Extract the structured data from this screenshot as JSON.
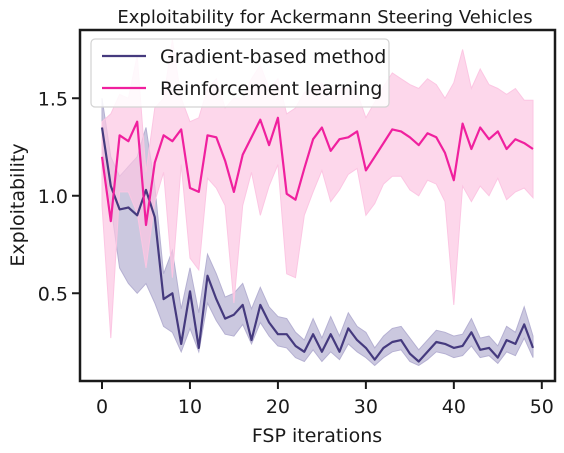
{
  "chart_data": {
    "type": "line",
    "title": "Exploitability for Ackermann Steering Vehicles",
    "xlabel": "FSP iterations",
    "ylabel": "Exploitability",
    "xlim": [
      -2.5,
      51.5
    ],
    "ylim": [
      0.05,
      1.85
    ],
    "xticks": [
      0,
      10,
      20,
      30,
      40,
      50
    ],
    "yticks": [
      0.5,
      1.0,
      1.5
    ],
    "xtick_labels": [
      "0",
      "10",
      "20",
      "30",
      "40",
      "50"
    ],
    "ytick_labels": [
      "0.5",
      "1.0",
      "1.5"
    ],
    "grid": false,
    "legend_position": "top-left",
    "series": [
      {
        "name": "Gradient-based method",
        "color": "#453a7e",
        "band_color": "#b5b0d2",
        "x": [
          0,
          1,
          2,
          3,
          4,
          5,
          6,
          7,
          8,
          9,
          10,
          11,
          12,
          13,
          14,
          15,
          16,
          17,
          18,
          19,
          20,
          21,
          22,
          23,
          24,
          25,
          26,
          27,
          28,
          29,
          30,
          31,
          32,
          33,
          34,
          35,
          36,
          37,
          38,
          39,
          40,
          41,
          42,
          43,
          44,
          45,
          46,
          47,
          48,
          49
        ],
        "values": [
          1.35,
          1.05,
          0.93,
          0.94,
          0.9,
          1.03,
          0.89,
          0.47,
          0.5,
          0.24,
          0.51,
          0.22,
          0.59,
          0.47,
          0.37,
          0.39,
          0.44,
          0.26,
          0.44,
          0.35,
          0.29,
          0.29,
          0.23,
          0.2,
          0.29,
          0.2,
          0.29,
          0.2,
          0.32,
          0.26,
          0.22,
          0.16,
          0.22,
          0.25,
          0.26,
          0.19,
          0.15,
          0.2,
          0.25,
          0.24,
          0.22,
          0.23,
          0.3,
          0.21,
          0.22,
          0.17,
          0.26,
          0.24,
          0.34,
          0.22
        ],
        "lower": [
          1.25,
          0.95,
          0.63,
          0.55,
          0.5,
          0.55,
          0.45,
          0.33,
          0.3,
          0.2,
          0.32,
          0.2,
          0.45,
          0.36,
          0.29,
          0.28,
          0.34,
          0.24,
          0.35,
          0.28,
          0.23,
          0.22,
          0.17,
          0.15,
          0.21,
          0.15,
          0.2,
          0.16,
          0.24,
          0.2,
          0.17,
          0.13,
          0.17,
          0.2,
          0.21,
          0.15,
          0.13,
          0.16,
          0.2,
          0.19,
          0.17,
          0.18,
          0.23,
          0.17,
          0.18,
          0.14,
          0.2,
          0.18,
          0.27,
          0.17
        ],
        "upper": [
          1.5,
          1.2,
          1.1,
          1.15,
          1.2,
          1.35,
          1.05,
          0.6,
          0.72,
          0.42,
          0.63,
          0.4,
          0.7,
          0.6,
          0.48,
          0.5,
          0.55,
          0.42,
          0.53,
          0.43,
          0.38,
          0.37,
          0.3,
          0.26,
          0.37,
          0.27,
          0.38,
          0.28,
          0.4,
          0.33,
          0.3,
          0.22,
          0.28,
          0.32,
          0.33,
          0.27,
          0.21,
          0.26,
          0.31,
          0.3,
          0.28,
          0.29,
          0.37,
          0.27,
          0.28,
          0.23,
          0.33,
          0.3,
          0.43,
          0.28
        ]
      },
      {
        "name": "Reinforcement learning",
        "color": "#f0209e",
        "band_color": "#fcc6e3",
        "x": [
          0,
          1,
          2,
          3,
          4,
          5,
          6,
          7,
          8,
          9,
          10,
          11,
          12,
          13,
          14,
          15,
          16,
          17,
          18,
          19,
          20,
          21,
          22,
          23,
          24,
          25,
          26,
          27,
          28,
          29,
          30,
          31,
          32,
          33,
          34,
          35,
          36,
          37,
          38,
          39,
          40,
          41,
          42,
          43,
          44,
          45,
          46,
          47,
          48,
          49
        ],
        "values": [
          1.2,
          0.87,
          1.31,
          1.28,
          1.38,
          0.85,
          1.17,
          1.31,
          1.28,
          1.34,
          1.04,
          1.02,
          1.31,
          1.3,
          1.18,
          1.02,
          1.21,
          1.3,
          1.39,
          1.26,
          1.4,
          1.01,
          0.98,
          1.14,
          1.29,
          1.35,
          1.23,
          1.29,
          1.3,
          1.33,
          1.13,
          1.2,
          1.27,
          1.34,
          1.33,
          1.3,
          1.26,
          1.32,
          1.3,
          1.22,
          1.08,
          1.37,
          1.24,
          1.35,
          1.29,
          1.33,
          1.24,
          1.29,
          1.27,
          1.24
        ],
        "lower": [
          0.95,
          0.27,
          1.02,
          1.02,
          0.91,
          0.63,
          0.97,
          1.12,
          0.58,
          1.16,
          0.68,
          0.62,
          1.09,
          1.04,
          0.95,
          0.45,
          0.95,
          1.12,
          0.9,
          1.05,
          1.16,
          0.6,
          0.58,
          0.9,
          1.02,
          1.13,
          0.97,
          1.03,
          1.11,
          1.14,
          0.9,
          0.96,
          1.06,
          1.1,
          1.1,
          1.03,
          1.0,
          1.08,
          1.06,
          0.97,
          0.44,
          1.05,
          0.97,
          1.05,
          1.0,
          1.09,
          0.98,
          1.02,
          1.04,
          0.99
        ],
        "upper": [
          1.38,
          1.42,
          1.52,
          1.5,
          1.72,
          1.12,
          1.45,
          1.5,
          1.8,
          1.5,
          1.38,
          1.4,
          1.55,
          1.6,
          1.45,
          1.5,
          1.5,
          1.6,
          1.67,
          1.55,
          1.6,
          1.42,
          1.45,
          1.53,
          1.55,
          1.58,
          1.52,
          1.55,
          1.55,
          1.53,
          1.4,
          1.48,
          1.56,
          1.63,
          1.6,
          1.57,
          1.55,
          1.6,
          1.57,
          1.5,
          1.58,
          1.75,
          1.55,
          1.65,
          1.57,
          1.55,
          1.52,
          1.55,
          1.49,
          1.49
        ]
      }
    ]
  }
}
